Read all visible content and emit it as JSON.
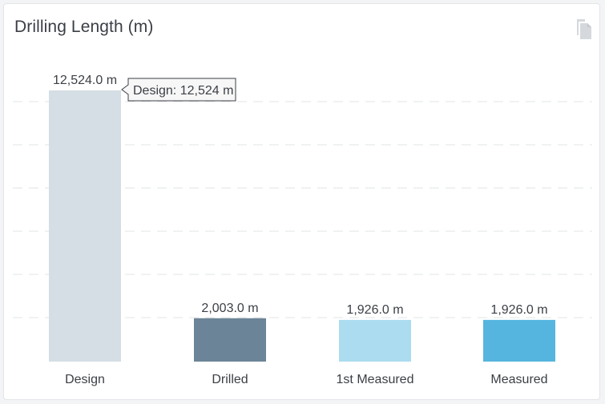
{
  "header": {
    "title": "Drilling Length (m)",
    "copy_icon": "copy-icon"
  },
  "tooltip": {
    "text": "Design: 12,524 m"
  },
  "colors": {
    "design": "#d4dee4",
    "drilled": "#6c8497",
    "first_measured": "#acdcef",
    "measured": "#56b5de",
    "grid": "#e2e4e6",
    "text": "#3b3f45"
  },
  "chart_data": {
    "type": "bar",
    "title": "Drilling Length (m)",
    "unit": "m",
    "categories": [
      "Design",
      "Drilled",
      "1st Measured",
      "Measured"
    ],
    "values": [
      12524.0,
      2003.0,
      1926.0,
      1926.0
    ],
    "value_labels": [
      "12,524.0 m",
      "2,003.0 m",
      "1,926.0 m",
      "1,926.0 m"
    ],
    "bar_colors": [
      "#d4dee4",
      "#6c8497",
      "#acdcef",
      "#56b5de"
    ],
    "ylim": [
      0,
      12524
    ],
    "grid": true,
    "legend": "none"
  }
}
